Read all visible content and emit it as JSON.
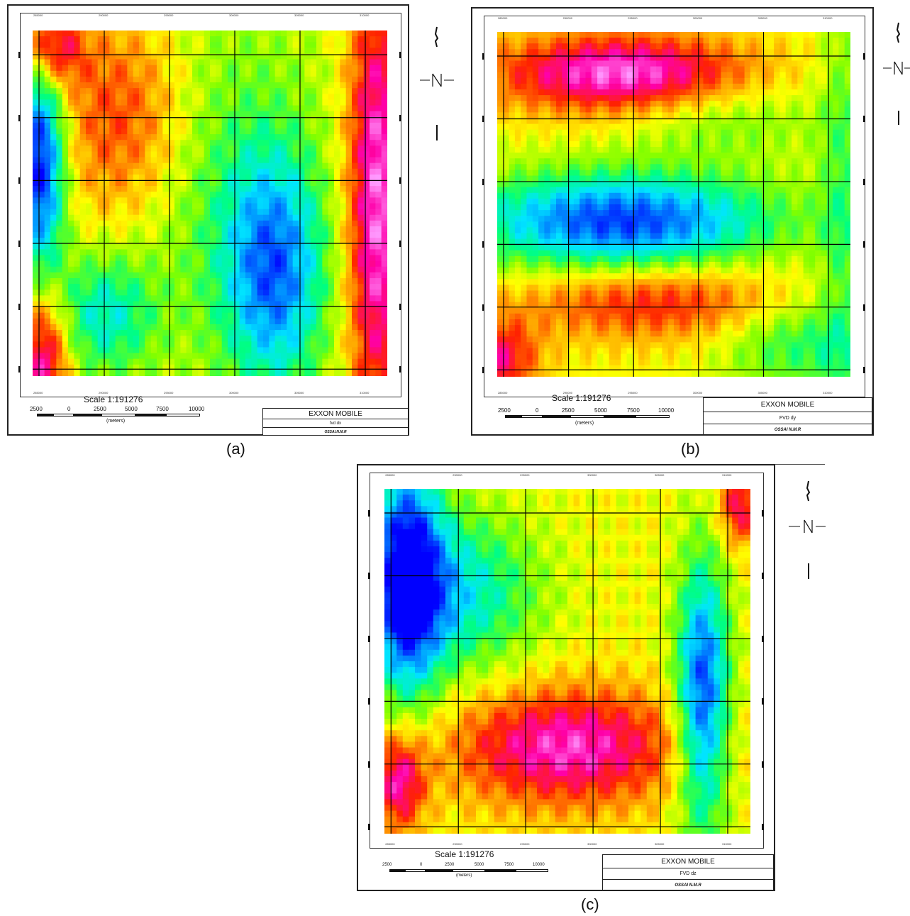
{
  "figure": {
    "panels": [
      {
        "id": "a",
        "caption": "(a)",
        "scale_label": "Scale 1:191276",
        "scale_ticks": [
          "2500",
          "0",
          "2500",
          "5000",
          "7500",
          "10000"
        ],
        "scale_unit": "(meters)",
        "title_block": [
          "EXXON MOBILE",
          "fvd dx",
          "OSSAI.N.M.R"
        ],
        "top_tick_labels": [
          "285000",
          "290000",
          "295000",
          "300000",
          "305000",
          "310000"
        ],
        "bottom_tick_labels": [
          "285000",
          "290000",
          "295000",
          "300000",
          "305000",
          "310000"
        ],
        "anomaly": "dx"
      },
      {
        "id": "b",
        "caption": "(b)",
        "scale_label": "Scale 1:191276",
        "scale_ticks": [
          "2500",
          "0",
          "2500",
          "5000",
          "7500",
          "10000"
        ],
        "scale_unit": "(meters)",
        "title_block": [
          "EXXON MOBILE",
          "FVD dy",
          "OSSAI N.M.R"
        ],
        "top_tick_labels": [
          "285000",
          "290000",
          "295000",
          "300000",
          "305000",
          "310000"
        ],
        "bottom_tick_labels": [
          "285000",
          "290000",
          "295000",
          "300000",
          "305000",
          "310000"
        ],
        "anomaly": "dy"
      },
      {
        "id": "c",
        "caption": "(c)",
        "scale_label": "Scale 1:191276",
        "scale_ticks": [
          "2500",
          "0",
          "2500",
          "5000",
          "7500",
          "10000"
        ],
        "scale_unit": "(meters)",
        "title_block": [
          "EXXON MOBILE",
          "FVD dz",
          "OSSAI N.M.R"
        ],
        "top_tick_labels": [
          "285000",
          "290000",
          "295000",
          "300000",
          "305000",
          "310000"
        ],
        "bottom_tick_labels": [
          "285000",
          "290000",
          "295000",
          "300000",
          "305000",
          "310000"
        ],
        "anomaly": "dz"
      }
    ],
    "colors": {
      "palette": [
        "#0000ff",
        "#0077ff",
        "#00e5ff",
        "#00ff7f",
        "#7fff00",
        "#ffff00",
        "#ff9900",
        "#ff2200",
        "#ff00aa",
        "#ff99ff"
      ],
      "grid_line": "#000000"
    }
  }
}
